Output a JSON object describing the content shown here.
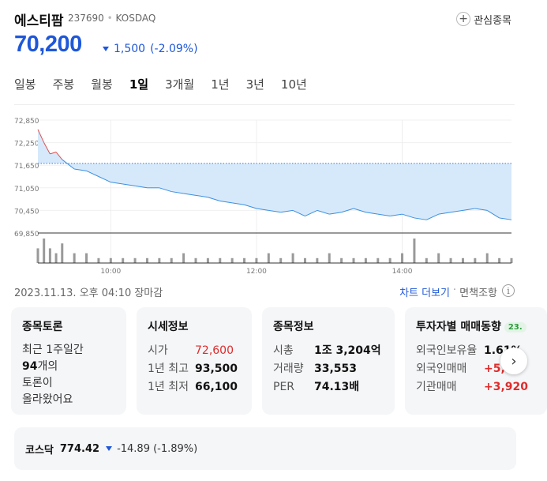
{
  "stock": {
    "name": "에스티팜",
    "code": "237690",
    "market": "KOSDAQ",
    "price": "70,200",
    "change_amount": "1,500",
    "change_percent": "(-2.09%)",
    "direction_color": "#1e57d8"
  },
  "watch": {
    "label": "관심종목",
    "icon": "plus-icon"
  },
  "tabs": [
    {
      "label": "일봉"
    },
    {
      "label": "주봉"
    },
    {
      "label": "월봉"
    },
    {
      "label": "1일"
    },
    {
      "label": "3개월"
    },
    {
      "label": "1년"
    },
    {
      "label": "3년"
    },
    {
      "label": "10년"
    }
  ],
  "active_tab": "1일",
  "status": {
    "timestamp": "2023.11.13. 오후 04:10 장마감",
    "chart_more": "차트 더보기",
    "disclaimer": "면책조항",
    "info_icon": "info-icon"
  },
  "cards": {
    "discussion": {
      "title": "종목토론",
      "line1": "최근 1주일간",
      "count": "94",
      "line2": "개의",
      "line3": "토론이",
      "line4": "올라왔어요"
    },
    "quote": {
      "title": "시세정보",
      "rows": [
        {
          "k": "시가",
          "v": "72,600"
        },
        {
          "k": "1년 최고",
          "v": "93,500"
        },
        {
          "k": "1년 최저",
          "v": "66,100"
        }
      ]
    },
    "info": {
      "title": "종목정보",
      "rows": [
        {
          "k": "시총",
          "v": "1조 3,204억"
        },
        {
          "k": "거래량",
          "v": "33,553"
        },
        {
          "k": "PER",
          "v": "74.13배"
        }
      ]
    },
    "investor": {
      "title": "투자자별 매매동향",
      "badge": "23.",
      "rows": [
        {
          "k": "외국인보유율",
          "v": "1.61%"
        },
        {
          "k": "외국인매매",
          "v": "+5,"
        },
        {
          "k": "기관매매",
          "v": "+3,920"
        }
      ]
    }
  },
  "index": {
    "name": "코스닥",
    "value": "774.42",
    "change": "-14.89 (-1.89%)"
  },
  "chart_data": {
    "type": "area",
    "reference_price": 71700,
    "ylim": [
      69850,
      72850
    ],
    "yticks": [
      "72,850",
      "72,250",
      "71,650",
      "71,050",
      "70,450",
      "69,850"
    ],
    "xticks": [
      "10:00",
      "12:00",
      "14:00"
    ],
    "colors": {
      "up": "#e05050",
      "down": "#3a8fe0",
      "up_fill": "#fbdede",
      "down_fill": "#d6e9fb",
      "volume": "#999999"
    },
    "x": [
      "09:00",
      "09:05",
      "09:10",
      "09:15",
      "09:20",
      "09:30",
      "09:40",
      "09:50",
      "10:00",
      "10:10",
      "10:20",
      "10:30",
      "10:40",
      "10:50",
      "11:00",
      "11:10",
      "11:20",
      "11:30",
      "11:40",
      "11:50",
      "12:00",
      "12:10",
      "12:20",
      "12:30",
      "12:40",
      "12:50",
      "13:00",
      "13:10",
      "13:20",
      "13:30",
      "13:40",
      "13:50",
      "14:00",
      "14:10",
      "14:20",
      "14:30",
      "14:40",
      "14:50",
      "15:00",
      "15:10",
      "15:20",
      "15:30"
    ],
    "values": [
      72600,
      72250,
      71950,
      72000,
      71800,
      71550,
      71500,
      71350,
      71200,
      71150,
      71100,
      71050,
      71050,
      70950,
      70900,
      70850,
      70800,
      70700,
      70650,
      70600,
      70500,
      70450,
      70400,
      70450,
      70300,
      70450,
      70350,
      70400,
      70500,
      70400,
      70350,
      70300,
      70350,
      70250,
      70200,
      70350,
      70400,
      70450,
      70500,
      70450,
      70250,
      70200
    ],
    "volume": [
      3,
      5,
      3,
      2,
      4,
      2,
      2,
      1,
      1,
      1,
      1,
      1,
      1,
      1,
      2,
      1,
      1,
      1,
      1,
      1,
      1,
      2,
      1,
      2,
      1,
      1,
      2,
      1,
      1,
      1,
      1,
      1,
      2,
      5,
      1,
      2,
      1,
      1,
      1,
      2,
      1,
      1
    ]
  }
}
